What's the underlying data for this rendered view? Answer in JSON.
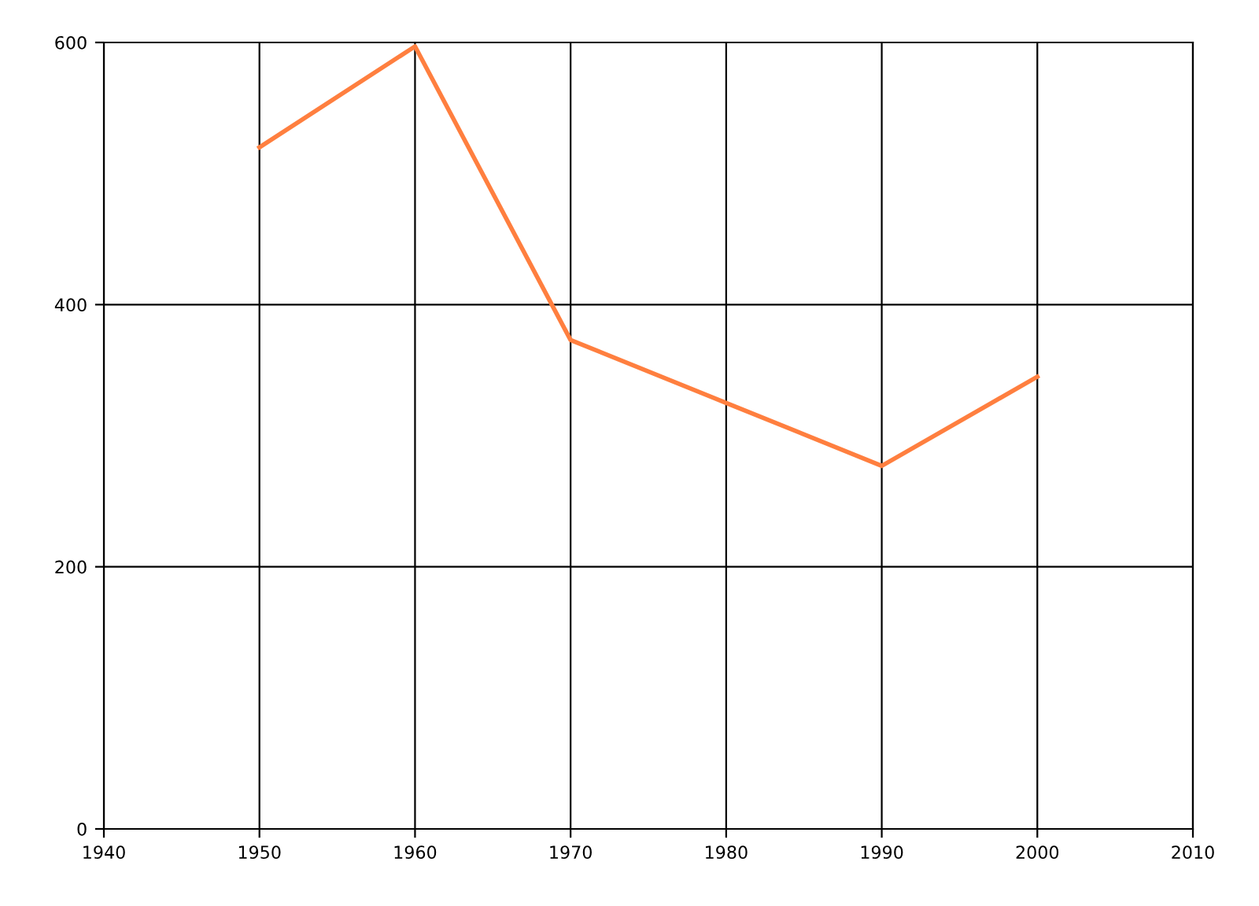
{
  "chart_data": {
    "type": "line",
    "x": [
      1950,
      1960,
      1970,
      1980,
      1990,
      2000
    ],
    "series": [
      {
        "color": "#ff7f3f",
        "values": [
          520,
          597,
          373,
          325,
          277,
          345
        ]
      }
    ],
    "xlim": [
      1940,
      2010
    ],
    "xticks": [
      1940,
      1950,
      1960,
      1970,
      1980,
      1990,
      2000,
      2010
    ],
    "ylim": [
      0,
      600
    ],
    "yticks": [
      0,
      200,
      400,
      600
    ],
    "grid": true,
    "marker": "none",
    "line_style": "solid"
  }
}
